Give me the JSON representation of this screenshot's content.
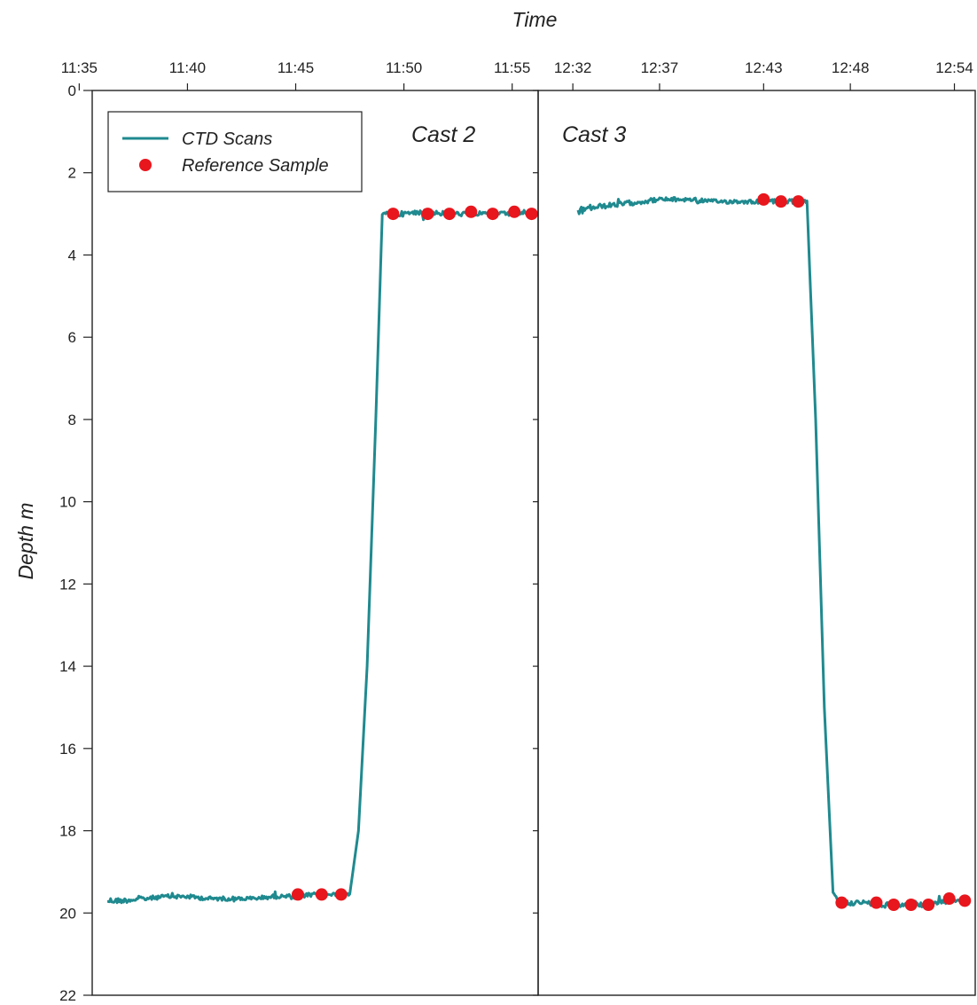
{
  "chart_data": {
    "type": "line",
    "x_title": "Time",
    "y_title": "Depth m",
    "y_axis": {
      "range": [
        0,
        22
      ],
      "inverted": true,
      "ticks": [
        0,
        2,
        4,
        6,
        8,
        10,
        12,
        14,
        16,
        18,
        20,
        22
      ]
    },
    "legend": {
      "placement": "top-left",
      "entries": [
        {
          "label": "CTD Scans",
          "marker": "line",
          "color": "#1f8a8f"
        },
        {
          "label": "Reference Sample",
          "marker": "circle",
          "color": "#e8161d"
        }
      ]
    },
    "colors": {
      "ctd": "#1f8a8f",
      "reference": "#e8161d",
      "frame": "#222222"
    },
    "panels": [
      {
        "title": "Cast 2",
        "x_range_minutes": [
          695.6,
          716.2
        ],
        "x_ticks": [
          {
            "label": "11:35",
            "minute": 695
          },
          {
            "label": "11:40",
            "minute": 700
          },
          {
            "label": "11:45",
            "minute": 705
          },
          {
            "label": "11:50",
            "minute": 710
          },
          {
            "label": "11:55",
            "minute": 715
          }
        ],
        "ctd_scans": {
          "x_minutes": [
            696.3,
            697,
            698,
            699,
            700,
            701,
            702,
            703,
            704,
            705,
            706,
            707,
            707.5,
            707.9,
            708.3,
            708.7,
            709.0,
            709.5,
            710,
            711,
            712,
            713,
            714,
            715,
            715.9
          ],
          "depth_m": [
            19.7,
            19.7,
            19.65,
            19.6,
            19.6,
            19.65,
            19.65,
            19.65,
            19.6,
            19.6,
            19.55,
            19.55,
            19.55,
            18.0,
            14.0,
            8.0,
            3.0,
            3.0,
            3.0,
            2.95,
            3.0,
            3.0,
            3.0,
            3.0,
            3.0
          ],
          "noise_m": [
            0.08,
            0.06,
            0.05,
            0.05,
            0.05,
            0.05,
            0.05,
            0.05,
            0.05,
            0.06,
            0.05,
            0.05,
            0.03,
            0,
            0,
            0,
            0.03,
            0.07,
            0.06,
            0.06,
            0.06,
            0.05,
            0.05,
            0.05,
            0.04
          ]
        },
        "reference_samples": {
          "x_minutes": [
            705.1,
            706.2,
            707.1,
            709.5,
            711.1,
            712.1,
            713.1,
            714.1,
            715.1,
            715.9
          ],
          "depth_m": [
            19.55,
            19.55,
            19.55,
            3.0,
            3.0,
            3.0,
            2.95,
            3.0,
            2.95,
            3.0
          ]
        }
      },
      {
        "title": "Cast 3",
        "x_range_minutes": [
          750,
          775.2
        ],
        "x_ticks": [
          {
            "label": "12:32",
            "minute": 752
          },
          {
            "label": "12:37",
            "minute": 757
          },
          {
            "label": "12:43",
            "minute": 763
          },
          {
            "label": "12:48",
            "minute": 768
          },
          {
            "label": "12:54",
            "minute": 774
          }
        ],
        "ctd_scans": {
          "x_minutes": [
            752.3,
            753,
            754,
            755,
            756,
            757,
            758,
            759,
            760,
            761,
            762,
            763,
            764,
            765,
            765.5,
            766.0,
            766.5,
            767.0,
            767.3,
            768,
            769,
            770,
            771,
            772,
            773,
            774,
            774.8
          ],
          "depth_m": [
            2.95,
            2.85,
            2.8,
            2.75,
            2.7,
            2.65,
            2.65,
            2.65,
            2.7,
            2.7,
            2.7,
            2.7,
            2.7,
            2.7,
            2.7,
            8.0,
            15.0,
            19.5,
            19.7,
            19.75,
            19.75,
            19.8,
            19.8,
            19.8,
            19.75,
            19.7,
            19.7
          ],
          "noise_m": [
            0.1,
            0.07,
            0.06,
            0.06,
            0.06,
            0.05,
            0.05,
            0.05,
            0.05,
            0.05,
            0.05,
            0.05,
            0.05,
            0.05,
            0.03,
            0,
            0,
            0,
            0.05,
            0.06,
            0.06,
            0.06,
            0.06,
            0.06,
            0.06,
            0.05,
            0.05
          ]
        },
        "reference_samples": {
          "x_minutes": [
            763.0,
            764.0,
            765.0,
            767.5,
            769.5,
            770.5,
            771.5,
            772.5,
            773.7,
            774.6
          ],
          "depth_m": [
            2.65,
            2.7,
            2.7,
            19.75,
            19.75,
            19.8,
            19.8,
            19.8,
            19.65,
            19.7
          ]
        }
      }
    ]
  }
}
